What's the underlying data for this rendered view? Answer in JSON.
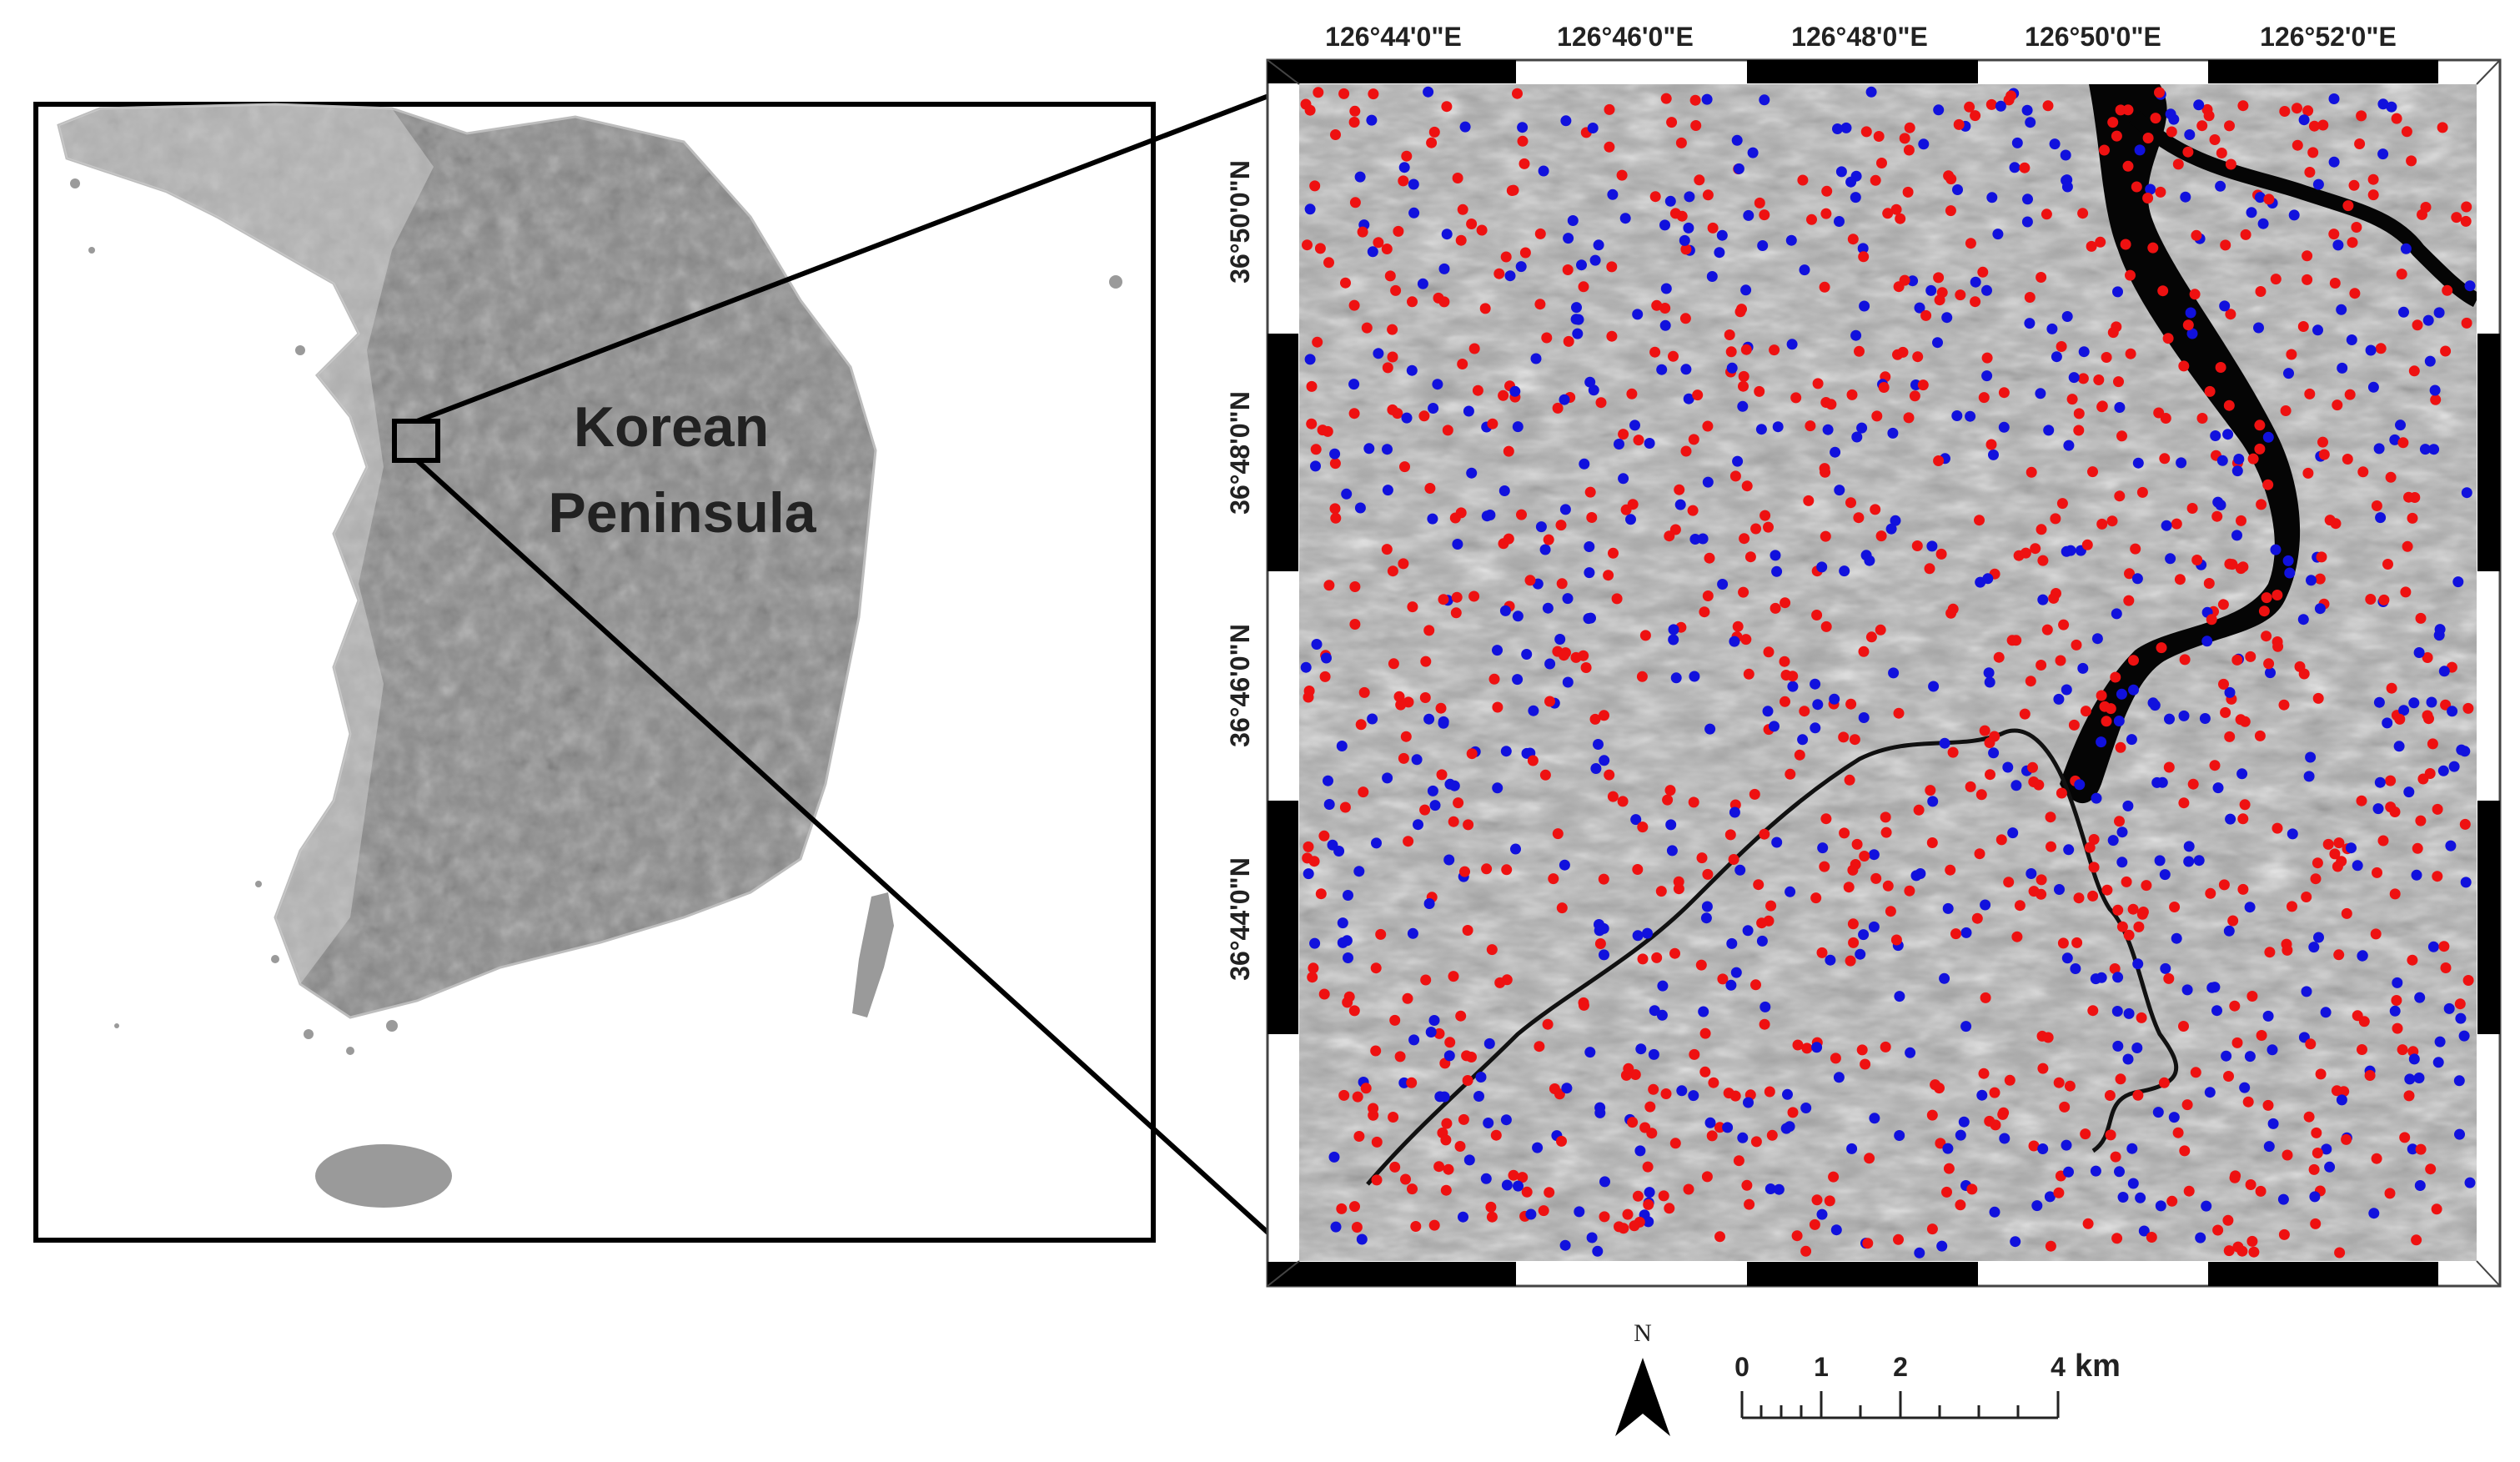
{
  "overview": {
    "label_line1": "Korean",
    "label_line2": "Peninsula"
  },
  "detail": {
    "lon_ticks": [
      "126°44'0\"E",
      "126°46'0\"E",
      "126°48'0\"E",
      "126°50'0\"E",
      "126°52'0\"E"
    ],
    "lat_ticks": [
      "36°50'0\"N",
      "36°48'0\"N",
      "36°46'0\"N",
      "36°44'0\"N"
    ],
    "point_colors": {
      "red": "#ee1111",
      "blue": "#1111dd"
    }
  },
  "north_arrow": {
    "label": "N"
  },
  "scale_bar": {
    "ticks": [
      "0",
      "1",
      "2",
      "4"
    ],
    "unit": "km"
  }
}
